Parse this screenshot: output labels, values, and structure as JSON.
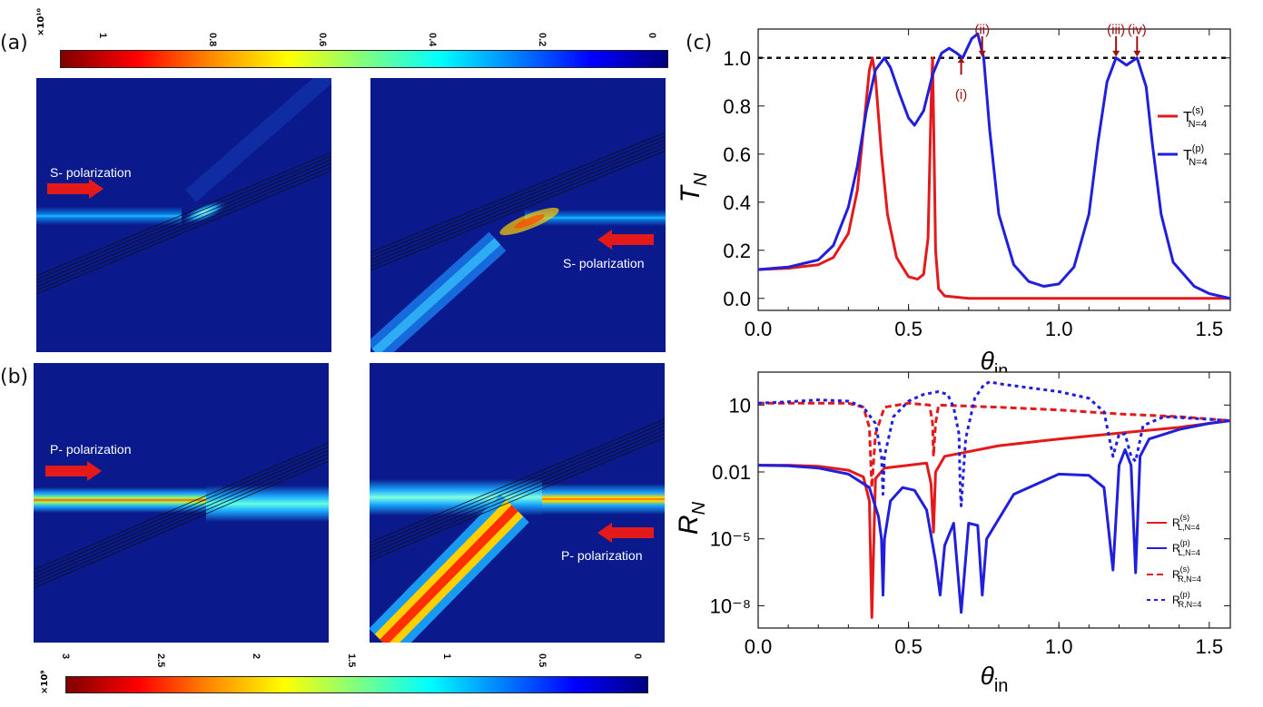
{
  "panels": {
    "a": "(a)",
    "b": "(b)",
    "c": "(c)"
  },
  "colorbar_top": {
    "exponent": "×10¹⁰",
    "ticks": [
      "1",
      "0.8",
      "0.6",
      "0.4",
      "0.2",
      "0"
    ]
  },
  "colorbar_bottom": {
    "exponent": "×10⁹",
    "ticks": [
      "3",
      "2.5",
      "2",
      "1.5",
      "1",
      "0.5",
      "0"
    ]
  },
  "field_labels": {
    "s_left": "S- polarization",
    "s_right": "S- polarization",
    "p_left": "P- polarization",
    "p_right": "P- polarization"
  },
  "colors": {
    "s": "#e31a1c",
    "p": "#1f1fdc",
    "annotation": "#a01010"
  },
  "chart_data": [
    {
      "type": "line",
      "ylabel": "T_N",
      "xlabel": "θ_in",
      "xlim": [
        0,
        1.57
      ],
      "ylim": [
        -0.05,
        1.12
      ],
      "xticks": [
        "0.0",
        "0.5",
        "1.0",
        "1.5"
      ],
      "yticks": [
        "0.0",
        "0.2",
        "0.4",
        "0.6",
        "0.8",
        "1.0"
      ],
      "reference_line": 1.0,
      "annotations": [
        "(i)",
        "(ii)",
        "(iii)",
        "(iv)"
      ],
      "annotation_x": [
        0.675,
        0.745,
        1.19,
        1.26
      ],
      "series": [
        {
          "name": "T(s) N=4",
          "x": [
            0.0,
            0.1,
            0.2,
            0.25,
            0.3,
            0.33,
            0.35,
            0.37,
            0.38,
            0.39,
            0.41,
            0.43,
            0.46,
            0.5,
            0.53,
            0.55,
            0.565,
            0.575,
            0.58,
            0.585,
            0.59,
            0.6,
            0.62,
            0.7,
            1.0,
            1.3,
            1.57
          ],
          "values": [
            0.12,
            0.125,
            0.14,
            0.17,
            0.27,
            0.45,
            0.7,
            0.95,
            1.0,
            0.92,
            0.6,
            0.35,
            0.17,
            0.09,
            0.08,
            0.1,
            0.25,
            0.8,
            1.0,
            0.6,
            0.2,
            0.04,
            0.01,
            0.0,
            0.0,
            0.0,
            0.0
          ]
        },
        {
          "name": "T(p) N=4",
          "x": [
            0.0,
            0.1,
            0.2,
            0.25,
            0.3,
            0.33,
            0.36,
            0.39,
            0.42,
            0.44,
            0.47,
            0.5,
            0.52,
            0.55,
            0.58,
            0.61,
            0.635,
            0.66,
            0.68,
            0.71,
            0.73,
            0.75,
            0.77,
            0.8,
            0.85,
            0.9,
            0.95,
            1.0,
            1.05,
            1.1,
            1.13,
            1.16,
            1.19,
            1.225,
            1.26,
            1.29,
            1.31,
            1.34,
            1.38,
            1.45,
            1.5,
            1.57
          ],
          "values": [
            0.12,
            0.13,
            0.16,
            0.22,
            0.38,
            0.55,
            0.78,
            0.95,
            1.0,
            0.96,
            0.85,
            0.75,
            0.72,
            0.78,
            0.93,
            1.02,
            1.04,
            1.02,
            1.0,
            1.08,
            1.1,
            1.0,
            0.7,
            0.35,
            0.14,
            0.07,
            0.05,
            0.06,
            0.13,
            0.35,
            0.65,
            0.9,
            1.0,
            0.97,
            1.0,
            0.88,
            0.65,
            0.35,
            0.15,
            0.05,
            0.02,
            0.0
          ]
        }
      ]
    },
    {
      "type": "line",
      "ylabel": "R_N",
      "xlabel": "θ_in",
      "yscale": "log",
      "xlim": [
        0,
        1.57
      ],
      "ylim": [
        1e-09,
        300
      ],
      "xticks": [
        "0.0",
        "0.5",
        "1.0",
        "1.5"
      ],
      "yticks": [
        "10",
        "0.01",
        "10⁻⁵",
        "10⁻⁸"
      ],
      "ytick_values": [
        10,
        0.01,
        1e-05,
        1e-08
      ],
      "series": [
        {
          "name": "R(s) L,N=4",
          "x": [
            0.0,
            0.1,
            0.2,
            0.3,
            0.35,
            0.37,
            0.378,
            0.39,
            0.42,
            0.5,
            0.56,
            0.575,
            0.583,
            0.59,
            0.62,
            0.8,
            1.0,
            1.2,
            1.4,
            1.57
          ],
          "values": [
            0.02,
            0.02,
            0.018,
            0.012,
            0.006,
            0.0005,
            3e-09,
            0.005,
            0.015,
            0.02,
            0.025,
            0.003,
            2e-05,
            0.01,
            0.05,
            0.15,
            0.3,
            0.55,
            1.0,
            2.0
          ],
          "style": "solid"
        },
        {
          "name": "R(p) L,N=4",
          "x": [
            0.0,
            0.1,
            0.2,
            0.3,
            0.37,
            0.4,
            0.41,
            0.415,
            0.42,
            0.44,
            0.48,
            0.52,
            0.56,
            0.59,
            0.605,
            0.62,
            0.65,
            0.675,
            0.7,
            0.73,
            0.745,
            0.76,
            0.85,
            1.0,
            1.1,
            1.15,
            1.18,
            1.2,
            1.22,
            1.24,
            1.255,
            1.27,
            1.3,
            1.4,
            1.5,
            1.57
          ],
          "values": [
            0.02,
            0.019,
            0.015,
            0.008,
            0.002,
            0.0001,
            1e-05,
            3e-08,
            1e-05,
            0.0005,
            0.002,
            0.0015,
            0.0002,
            1e-06,
            3e-08,
            5e-06,
            5e-05,
            5e-09,
            5e-05,
            4e-05,
            3e-08,
            1e-05,
            0.001,
            0.008,
            0.007,
            0.002,
            4e-07,
            0.02,
            0.1,
            0.02,
            3e-07,
            0.05,
            0.3,
            0.8,
            1.5,
            2.0
          ],
          "style": "solid"
        },
        {
          "name": "R(s) R,N=4",
          "x": [
            0.0,
            0.2,
            0.3,
            0.35,
            0.37,
            0.378,
            0.39,
            0.42,
            0.5,
            0.57,
            0.58,
            0.583,
            0.59,
            0.6,
            0.8,
            1.0,
            1.2,
            1.4,
            1.57
          ],
          "values": [
            12,
            12,
            12,
            8,
            1,
            0.002,
            0.5,
            8,
            12,
            10,
            1.5,
            0.05,
            1.5,
            10,
            8,
            6,
            4,
            3,
            2
          ],
          "style": "dashed"
        },
        {
          "name": "R(p) R,N=4",
          "x": [
            0.0,
            0.1,
            0.2,
            0.3,
            0.35,
            0.39,
            0.41,
            0.415,
            0.42,
            0.45,
            0.5,
            0.55,
            0.6,
            0.63,
            0.65,
            0.668,
            0.672,
            0.675,
            0.69,
            0.72,
            0.75,
            0.77,
            0.8,
            0.9,
            1.0,
            1.1,
            1.15,
            1.18,
            1.2,
            1.22,
            1.24,
            1.255,
            1.28,
            1.35,
            1.45,
            1.57
          ],
          "values": [
            12,
            14,
            17,
            15,
            8,
            1.5,
            0.05,
            0.001,
            0.05,
            3,
            15,
            30,
            40,
            30,
            8,
            0.5,
            0.0015,
            0.0003,
            0.3,
            20,
            80,
            110,
            90,
            60,
            40,
            20,
            5,
            0.05,
            0.5,
            0.5,
            0.05,
            0.03,
            1.2,
            3,
            2.5,
            2.0
          ],
          "style": "dotted"
        }
      ]
    }
  ]
}
